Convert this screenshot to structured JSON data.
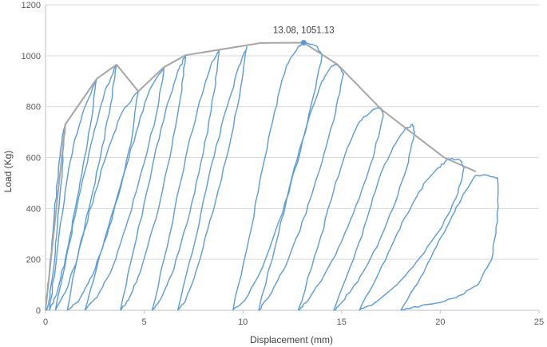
{
  "chart_data": {
    "type": "line",
    "title": "",
    "xlabel": "Displacement (mm)",
    "ylabel": "Load (Kg)",
    "xlim": [
      0,
      25
    ],
    "ylim": [
      0,
      1200
    ],
    "x_ticks": [
      "0",
      "5",
      "10",
      "15",
      "20",
      "25"
    ],
    "y_ticks": [
      "0",
      "200",
      "400",
      "600",
      "800",
      "1000",
      "1200"
    ],
    "grid": "horizontal",
    "legend": "none",
    "colors": {
      "cycles": "#5b9bd5",
      "envelope": "#a6a6a6",
      "grid": "#d9d9d9",
      "axis": "#bfbfbf"
    },
    "annotation": {
      "label": "13.08, 1051.13",
      "x": 13.08,
      "y": 1051.13
    },
    "envelope": {
      "x": [
        0,
        1.0,
        2.6,
        3.6,
        4.7,
        6.0,
        7.1,
        10.9,
        13.08,
        14.8,
        17.0,
        20.2,
        21.8
      ],
      "y": [
        0,
        730,
        910,
        965,
        860,
        955,
        1002,
        1050,
        1051.13,
        965,
        790,
        600,
        545
      ]
    },
    "series": [
      {
        "x": [
          0,
          0.2,
          0.45,
          0.7,
          0.9,
          1.0,
          0.85,
          0.6,
          0.35,
          0.15,
          0.05
        ],
        "y": [
          0,
          150,
          380,
          590,
          700,
          730,
          560,
          330,
          130,
          20,
          0
        ]
      },
      {
        "x": [
          0.2,
          0.55,
          1.0,
          1.4,
          2.0,
          2.6,
          2.35,
          1.9,
          1.45,
          1.0,
          0.55,
          0.2
        ],
        "y": [
          0,
          200,
          470,
          640,
          800,
          910,
          760,
          570,
          380,
          200,
          60,
          0
        ]
      },
      {
        "x": [
          0.5,
          1.2,
          1.8,
          2.4,
          3.0,
          3.6,
          3.3,
          2.8,
          2.2,
          1.6,
          1.0,
          0.5
        ],
        "y": [
          0,
          260,
          480,
          680,
          860,
          965,
          810,
          610,
          400,
          200,
          70,
          0
        ]
      },
      {
        "x": [
          1.1,
          1.7,
          2.5,
          3.2,
          3.9,
          4.7,
          4.4,
          3.8,
          3.1,
          2.4,
          1.7,
          1.1
        ],
        "y": [
          0,
          240,
          460,
          640,
          780,
          860,
          690,
          480,
          290,
          140,
          40,
          0
        ]
      },
      {
        "x": [
          2.0,
          2.9,
          3.8,
          4.6,
          5.3,
          6.0,
          5.7,
          5.0,
          4.2,
          3.4,
          2.6,
          2.0
        ],
        "y": [
          0,
          250,
          490,
          700,
          870,
          955,
          800,
          580,
          360,
          170,
          50,
          0
        ]
      },
      {
        "x": [
          3.8,
          4.6,
          5.4,
          6.1,
          6.7,
          7.1,
          6.85,
          6.3,
          5.6,
          4.8,
          4.2,
          3.8
        ],
        "y": [
          0,
          280,
          560,
          790,
          940,
          1002,
          840,
          600,
          360,
          150,
          40,
          0
        ]
      },
      {
        "x": [
          5.4,
          6.3,
          7.1,
          7.8,
          8.4,
          8.8,
          8.55,
          8.0,
          7.3,
          6.5,
          5.8,
          5.4
        ],
        "y": [
          0,
          300,
          600,
          820,
          970,
          1020,
          860,
          620,
          380,
          160,
          40,
          0
        ]
      },
      {
        "x": [
          6.7,
          7.6,
          8.4,
          9.2,
          9.8,
          10.2,
          9.9,
          9.3,
          8.5,
          7.7,
          7.1,
          6.7
        ],
        "y": [
          0,
          280,
          570,
          800,
          960,
          1035,
          880,
          640,
          390,
          170,
          40,
          0
        ]
      },
      {
        "x": [
          9.5,
          10.3,
          11.0,
          11.6,
          12.2,
          12.8,
          13.08,
          13.7,
          14.0,
          13.6,
          12.9,
          12.0,
          11.0,
          10.1,
          9.5
        ],
        "y": [
          0,
          280,
          560,
          780,
          960,
          1035,
          1051.13,
          1040,
          1000,
          850,
          620,
          380,
          170,
          40,
          0
        ]
      },
      {
        "x": [
          10.8,
          11.8,
          12.6,
          13.4,
          14.0,
          14.5,
          14.8,
          15.1,
          14.7,
          14.0,
          13.2,
          12.2,
          11.3,
          10.8
        ],
        "y": [
          0,
          300,
          560,
          770,
          900,
          960,
          965,
          930,
          780,
          580,
          380,
          180,
          50,
          0
        ]
      },
      {
        "x": [
          12.8,
          13.8,
          14.6,
          15.3,
          15.9,
          16.6,
          17.0,
          17.1,
          16.6,
          15.9,
          15.0,
          14.0,
          13.2,
          12.8
        ],
        "y": [
          0,
          250,
          470,
          640,
          740,
          790,
          795,
          760,
          600,
          440,
          270,
          120,
          30,
          0
        ]
      },
      {
        "x": [
          14.6,
          15.6,
          16.4,
          17.0,
          17.6,
          18.2,
          18.6,
          18.7,
          18.3,
          17.6,
          16.8,
          15.8,
          15.0,
          14.6
        ],
        "y": [
          0,
          200,
          390,
          540,
          640,
          710,
          730,
          700,
          560,
          400,
          250,
          110,
          30,
          0
        ]
      },
      {
        "x": [
          15.9,
          16.9,
          17.8,
          18.6,
          19.3,
          19.9,
          20.4,
          21.0,
          21.2,
          20.9,
          20.1,
          19.0,
          17.8,
          16.6,
          15.9
        ],
        "y": [
          0,
          150,
          300,
          420,
          510,
          560,
          595,
          590,
          560,
          460,
          330,
          210,
          100,
          25,
          0
        ]
      },
      {
        "x": [
          18.0,
          19.0,
          19.8,
          20.6,
          21.3,
          21.8,
          22.4,
          22.9,
          22.9,
          22.6,
          21.9,
          20.8,
          19.6,
          18.5,
          18.0
        ],
        "y": [
          0,
          130,
          250,
          370,
          470,
          530,
          530,
          520,
          350,
          200,
          100,
          50,
          25,
          8,
          0
        ]
      }
    ]
  }
}
